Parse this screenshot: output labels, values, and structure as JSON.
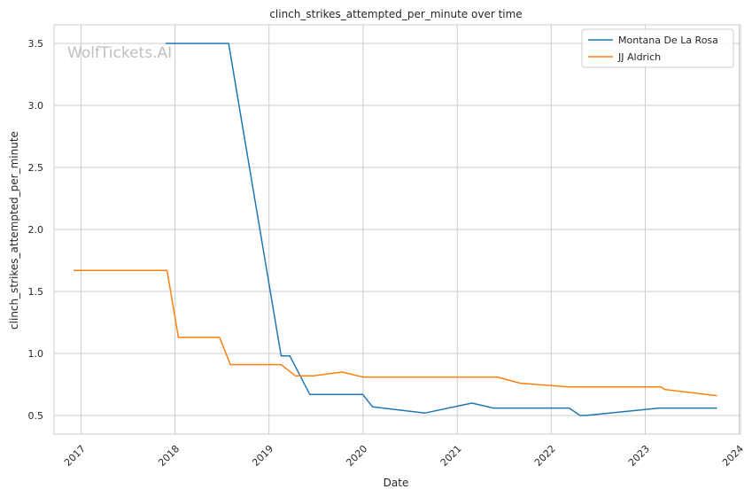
{
  "chart_data": {
    "type": "line",
    "title": "clinch_strikes_attempted_per_minute over time",
    "xlabel": "Date",
    "ylabel": "clinch_strikes_attempted_per_minute",
    "watermark": "WolfTickets.AI",
    "xlim": [
      "2016-09-18",
      "2024-01-06"
    ],
    "ylim": [
      0.35,
      3.65
    ],
    "x_ticks": [
      "2017-01-01",
      "2018-01-01",
      "2019-01-01",
      "2020-01-01",
      "2021-01-01",
      "2022-01-01",
      "2023-01-01",
      "2024-01-01"
    ],
    "x_tick_labels": [
      "2017",
      "2018",
      "2019",
      "2020",
      "2021",
      "2022",
      "2023",
      "2024"
    ],
    "y_ticks": [
      0.5,
      1.0,
      1.5,
      2.0,
      2.5,
      3.0,
      3.5
    ],
    "y_tick_labels": [
      "0.5",
      "1.0",
      "1.5",
      "2.0",
      "2.5",
      "3.0",
      "3.5"
    ],
    "grid": true,
    "legend_position": "top-right",
    "series": [
      {
        "name": "Montana De La Rosa",
        "color": "#1f77b4",
        "points": [
          [
            "2017-11-25",
            3.5
          ],
          [
            "2018-07-28",
            3.5
          ],
          [
            "2019-02-17",
            0.98
          ],
          [
            "2019-03-23",
            0.98
          ],
          [
            "2019-06-08",
            0.67
          ],
          [
            "2019-12-31",
            0.67
          ],
          [
            "2020-02-07",
            0.57
          ],
          [
            "2020-08-29",
            0.52
          ],
          [
            "2021-02-27",
            0.6
          ],
          [
            "2021-05-22",
            0.56
          ],
          [
            "2022-03-12",
            0.56
          ],
          [
            "2022-04-23",
            0.5
          ],
          [
            "2022-05-14",
            0.5
          ],
          [
            "2023-02-25",
            0.56
          ],
          [
            "2023-09-16",
            0.56
          ],
          [
            "2023-10-07",
            0.56
          ]
        ]
      },
      {
        "name": "JJ Aldrich",
        "color": "#ff7f0e",
        "points": [
          [
            "2016-12-03",
            1.67
          ],
          [
            "2017-12-01",
            1.67
          ],
          [
            "2018-01-14",
            1.13
          ],
          [
            "2018-06-23",
            1.13
          ],
          [
            "2018-08-04",
            0.91
          ],
          [
            "2019-02-17",
            0.91
          ],
          [
            "2019-04-13",
            0.82
          ],
          [
            "2019-06-22",
            0.82
          ],
          [
            "2019-10-12",
            0.85
          ],
          [
            "2020-01-01",
            0.81
          ],
          [
            "2021-03-01",
            0.81
          ],
          [
            "2021-06-05",
            0.81
          ],
          [
            "2021-09-04",
            0.76
          ],
          [
            "2022-03-12",
            0.73
          ],
          [
            "2023-03-04",
            0.73
          ],
          [
            "2023-03-18",
            0.71
          ],
          [
            "2023-08-26",
            0.67
          ],
          [
            "2023-10-07",
            0.66
          ]
        ]
      }
    ]
  }
}
